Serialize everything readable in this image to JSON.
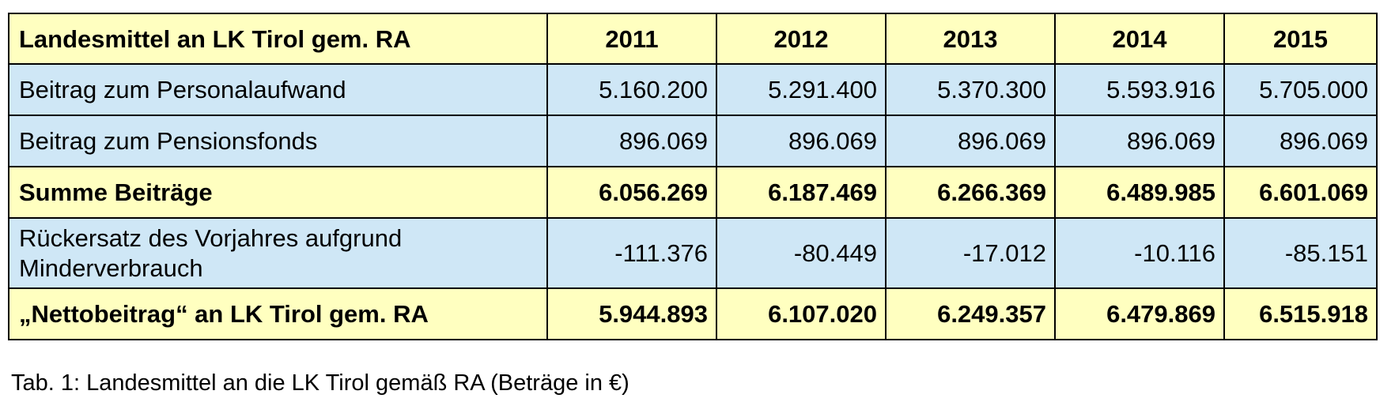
{
  "table": {
    "header": {
      "label": "Landesmittel an LK Tirol gem. RA",
      "years": [
        "2011",
        "2012",
        "2013",
        "2014",
        "2015"
      ]
    },
    "rows": [
      {
        "label": "Beitrag zum Personalaufwand",
        "values": [
          "5.160.200",
          "5.291.400",
          "5.370.300",
          "5.593.916",
          "5.705.000"
        ]
      },
      {
        "label": "Beitrag zum Pensionsfonds",
        "values": [
          "896.069",
          "896.069",
          "896.069",
          "896.069",
          "896.069"
        ]
      },
      {
        "label": "Summe Beiträge",
        "values": [
          "6.056.269",
          "6.187.469",
          "6.266.369",
          "6.489.985",
          "6.601.069"
        ]
      },
      {
        "label": "Rückersatz des Vorjahres aufgrund Minderverbrauch",
        "values": [
          "-111.376",
          "-80.449",
          "-17.012",
          "-10.116",
          "-85.151"
        ]
      },
      {
        "label": "„Nettobeitrag“ an LK Tirol gem. RA",
        "values": [
          "5.944.893",
          "6.107.020",
          "6.249.357",
          "6.479.869",
          "6.515.918"
        ]
      }
    ]
  },
  "caption": "Tab. 1: Landesmittel an die LK Tirol gemäß RA (Beträge in €)",
  "colors": {
    "header_fill": "#ffffc0",
    "row_fill": "#cfe7f6",
    "border": "#000000"
  }
}
